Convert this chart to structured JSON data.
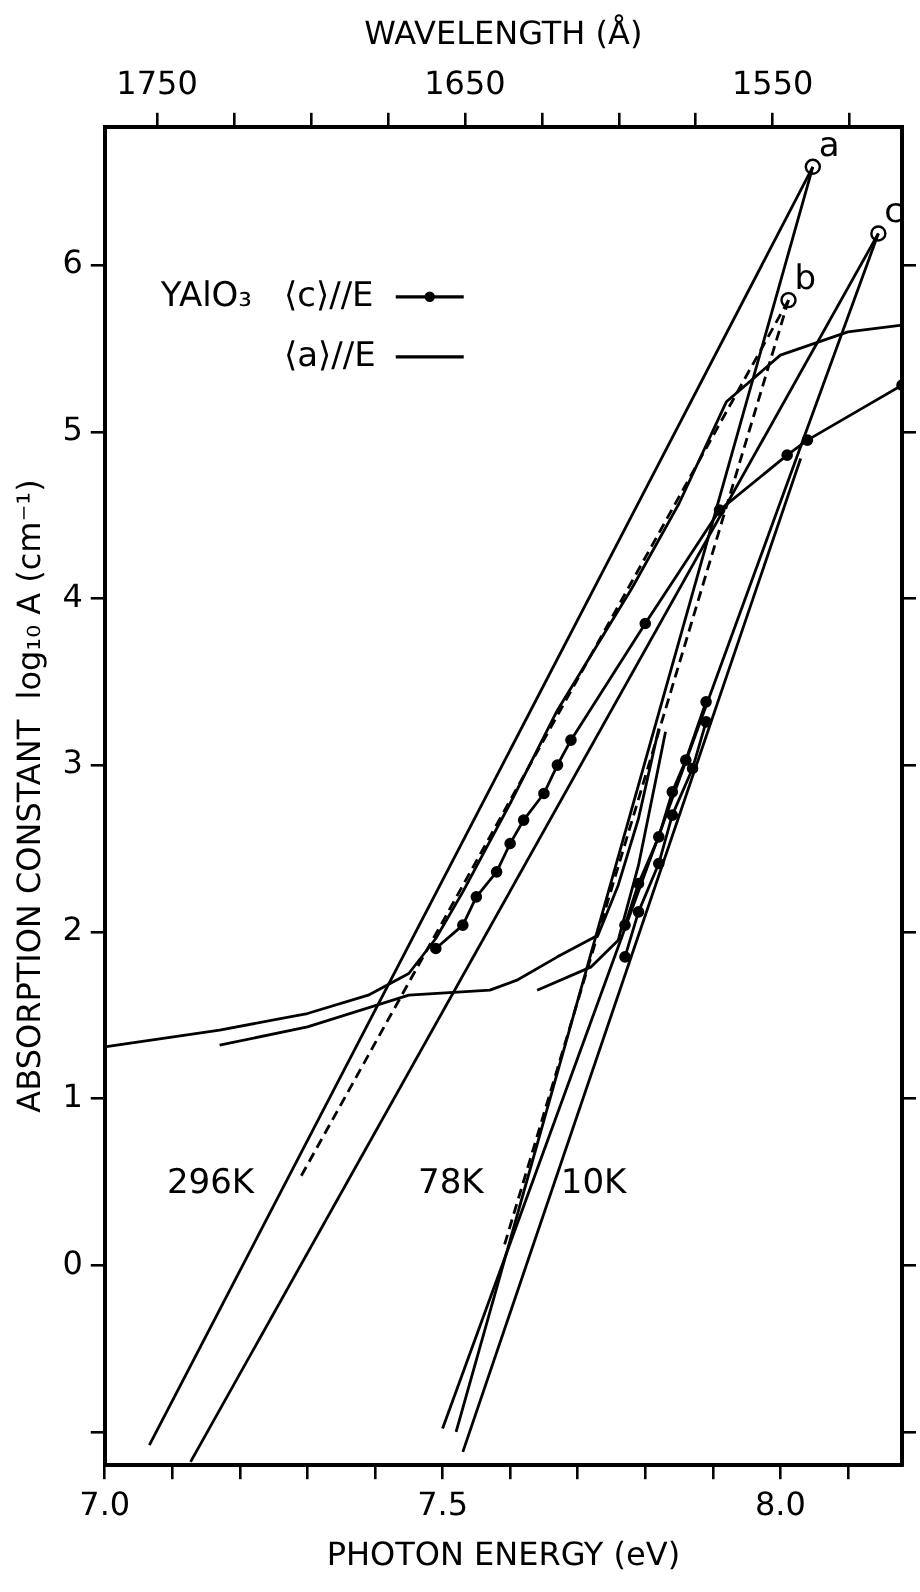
{
  "chart_data": {
    "type": "line",
    "xlabel": "PHOTON ENERGY (eV)",
    "ylabel": "ABSORPTION CONSTANT  log₁₀ A (cm⁻¹)",
    "x2label": "WAVELENGTH (Å)",
    "legend_title": "YAlO₃",
    "legend": "top left",
    "grid": false,
    "xlim": [
      7.0,
      8.18
    ],
    "ylim": [
      -1.2,
      6.83
    ],
    "x2lim": [
      1767,
      1508
    ],
    "xticks": [
      {
        "value": 7.0,
        "label": "7.0"
      },
      {
        "value": 7.1,
        "label": null
      },
      {
        "value": 7.2,
        "label": null
      },
      {
        "value": 7.3,
        "label": null
      },
      {
        "value": 7.4,
        "label": null
      },
      {
        "value": 7.5,
        "label": "7.5"
      },
      {
        "value": 7.6,
        "label": null
      },
      {
        "value": 7.7,
        "label": null
      },
      {
        "value": 7.8,
        "label": null
      },
      {
        "value": 7.9,
        "label": null
      },
      {
        "value": 8.0,
        "label": "8.0"
      },
      {
        "value": 8.1,
        "label": null
      }
    ],
    "yticks": [
      {
        "value": -1,
        "label": null
      },
      0,
      1,
      2,
      3,
      4,
      5,
      6
    ],
    "x2ticks": [
      1750,
      {
        "value": 1725,
        "label": null
      },
      {
        "value": 1700,
        "label": null
      },
      {
        "value": 1675,
        "label": null
      },
      1650,
      {
        "value": 1625,
        "label": null
      },
      {
        "value": 1600,
        "label": null
      },
      {
        "value": 1575,
        "label": null
      },
      1550,
      {
        "value": 1525,
        "label": null
      }
    ],
    "series": [
      {
        "name": "⟨c⟩//E",
        "color": "#000000",
        "marker": "circle",
        "x": [
          7.49,
          7.53,
          7.55,
          7.58,
          7.6,
          7.62,
          7.65,
          7.67,
          7.69,
          7.8,
          7.91,
          8.01,
          8.04,
          8.18
        ],
        "values": [
          1.9,
          2.04,
          2.21,
          2.36,
          2.53,
          2.67,
          2.83,
          3.0,
          3.15,
          3.85,
          4.53,
          4.86,
          4.95,
          5.28
        ]
      },
      {
        "name": "⟨a⟩//E",
        "color": "#000000",
        "marker": "none",
        "x": [
          7.0,
          7.17,
          7.3,
          7.39,
          7.45,
          7.49,
          7.53,
          7.6,
          7.67,
          7.78,
          7.85,
          7.92,
          8.0,
          8.1,
          8.18
        ],
        "values": [
          1.31,
          1.41,
          1.51,
          1.62,
          1.75,
          1.96,
          2.24,
          2.77,
          3.33,
          4.06,
          4.57,
          5.18,
          5.46,
          5.6,
          5.64
        ]
      },
      {
        "color": "#000000",
        "marker": "none",
        "x": [
          7.17,
          7.3,
          7.45,
          7.57,
          7.61,
          7.67,
          7.73,
          7.76,
          7.79,
          7.82
        ],
        "values": [
          1.32,
          1.43,
          1.62,
          1.65,
          1.71,
          1.85,
          1.98,
          2.28,
          2.68,
          3.22
        ]
      },
      {
        "color": "#000000",
        "marker": "none",
        "x": [
          7.64,
          7.72,
          7.76,
          7.79,
          7.82,
          7.83
        ],
        "values": [
          1.65,
          1.79,
          1.95,
          2.4,
          3.0,
          3.2
        ]
      },
      {
        "color": "#000000",
        "marker": "circle",
        "x": [
          7.77,
          7.79,
          7.82,
          7.84,
          7.86,
          7.89
        ],
        "values": [
          2.04,
          2.29,
          2.57,
          2.84,
          3.03,
          3.38
        ]
      },
      {
        "color": "#000000",
        "marker": "circle",
        "x": [
          7.77,
          7.79,
          7.82,
          7.84,
          7.87,
          7.89
        ],
        "values": [
          1.85,
          2.12,
          2.41,
          2.7,
          2.98,
          3.26
        ]
      },
      {
        "color": "#000000",
        "marker": "none",
        "x": [
          8.048,
          7.066
        ],
        "values": [
          6.59,
          -1.08
        ]
      },
      {
        "color": "#000000",
        "marker": "none",
        "x": [
          8.048,
          7.52
        ],
        "values": [
          6.59,
          -1.0
        ]
      },
      {
        "color": "#000000",
        "marker": "none",
        "line_style": "dashed",
        "x": [
          8.012,
          7.29
        ],
        "values": [
          5.79,
          0.53
        ]
      },
      {
        "color": "#000000",
        "marker": "none",
        "line_style": "dashed",
        "x": [
          8.012,
          7.59
        ],
        "values": [
          5.79,
          0.1
        ]
      },
      {
        "color": "#000000",
        "marker": "none",
        "x": [
          8.145,
          7.127
        ],
        "values": [
          6.19,
          -1.18
        ]
      },
      {
        "color": "#000000",
        "marker": "none",
        "x": [
          8.145,
          7.5
        ],
        "values": [
          6.19,
          -0.98
        ]
      },
      {
        "color": "#000000",
        "marker": "none",
        "x": [
          8.03,
          7.53
        ],
        "values": [
          4.84,
          -1.12
        ]
      },
      {
        "type": "scatter",
        "color": "#000000",
        "marker": "circle",
        "x": [
          8.048,
          8.012,
          8.145
        ],
        "values": [
          6.59,
          5.79,
          6.19
        ]
      }
    ],
    "annotations": [
      {
        "text": "a",
        "x": 8.048,
        "y": 6.59
      },
      {
        "text": "b",
        "x": 8.012,
        "y": 5.79
      },
      {
        "text": "c",
        "x": 8.145,
        "y": 6.19
      },
      "296K",
      "78K",
      "10K"
    ]
  }
}
